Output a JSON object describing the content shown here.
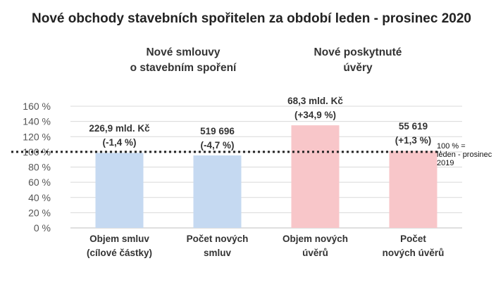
{
  "chart_data": {
    "type": "bar",
    "title": "Nové obchody stavebních spořitelen za období leden - prosinec 2020",
    "groups": [
      {
        "label": "Nové smlouvy\no stavebním spoření"
      },
      {
        "label": "Nové poskytnuté\núvěry"
      }
    ],
    "categories": [
      "Objem smluv\n(cílové částky)",
      "Počet  nových\nsmluv",
      "Objem nových\núvěrů",
      "Počet\nnových úvěrů"
    ],
    "values": [
      98.6,
      95.3,
      134.9,
      101.3
    ],
    "data_labels": [
      "226,9 mld. Kč\n(-1,4 %)",
      "519 696\n(-4,7 %)",
      "68,3 mld. Kč\n(+34,9 %)",
      "55 619\n(+1,3 %)"
    ],
    "bar_colors": [
      "#c5d9f1",
      "#c5d9f1",
      "#f8c6c9",
      "#f8c6c9"
    ],
    "ylim": [
      0,
      160
    ],
    "yticks": [
      0,
      20,
      40,
      60,
      80,
      100,
      120,
      140,
      160
    ],
    "ytick_labels": [
      "0 %",
      "20 %",
      "40 %",
      "60 %",
      "80 %",
      "100 %",
      "120 %",
      "140 %",
      "160 %"
    ],
    "reference_line": {
      "value": 100,
      "label": "100 % =\nleden - prosinec 2019"
    },
    "grid": true,
    "grid_color": "#d9d9d9"
  }
}
